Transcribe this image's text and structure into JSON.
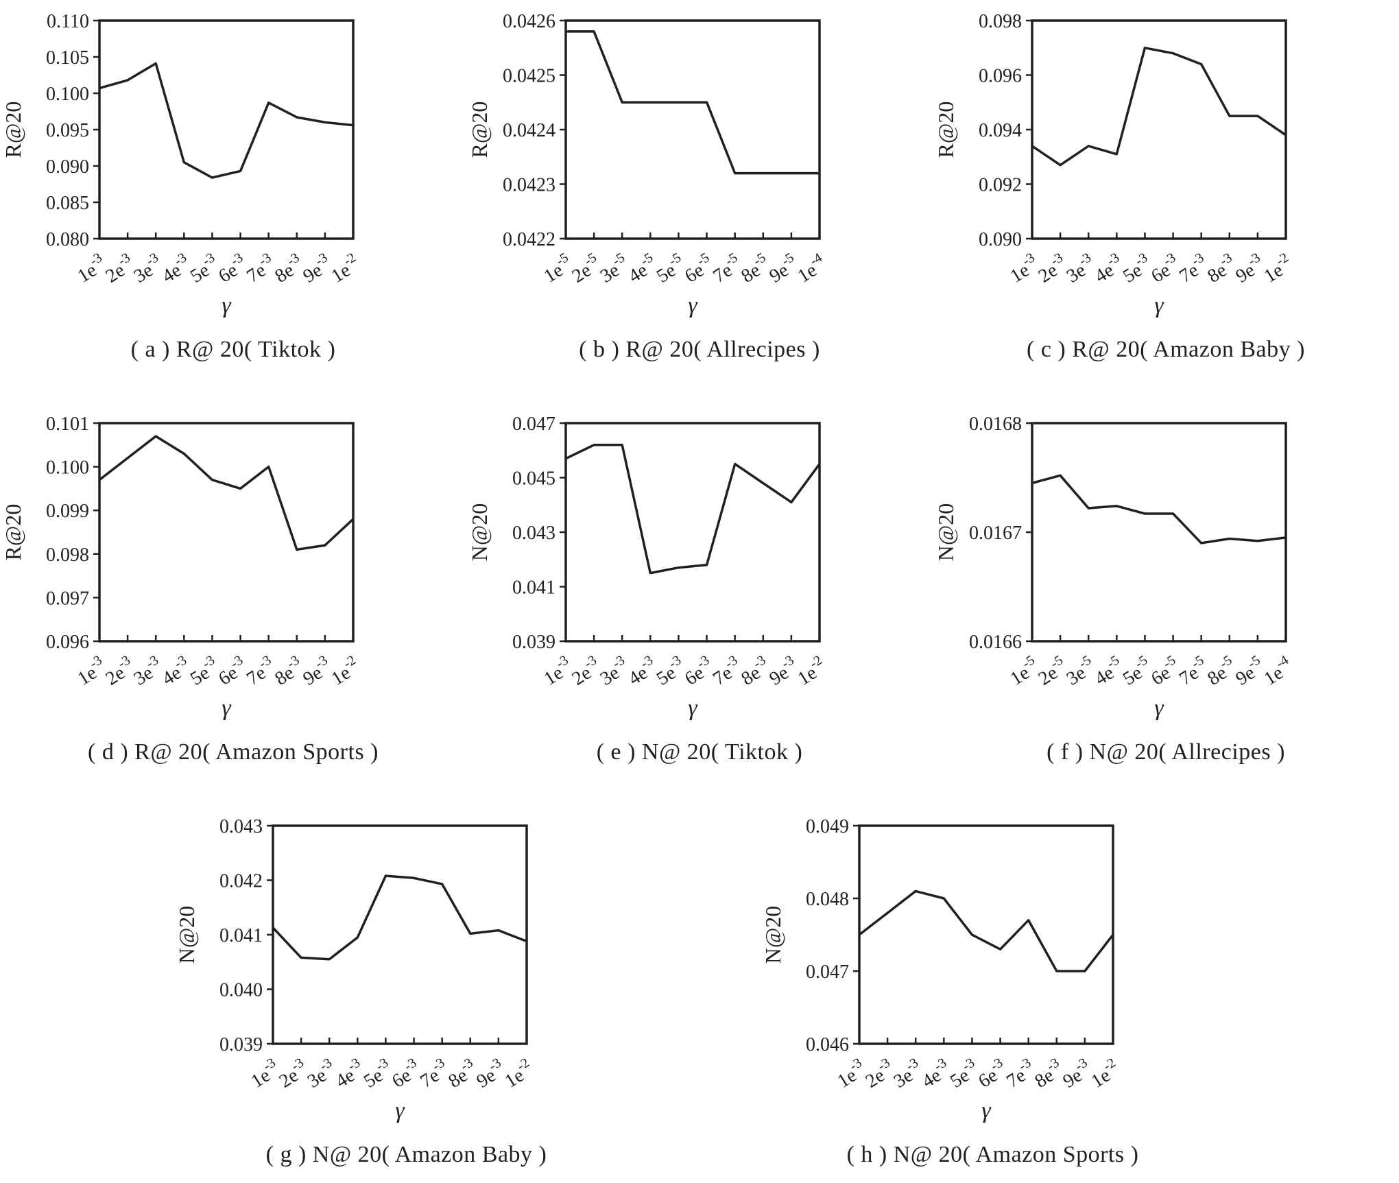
{
  "page": {
    "background": "#ffffff",
    "ink": "#231f20"
  },
  "chart_data": [
    {
      "id": "a",
      "type": "line",
      "caption": "( a ) R@ 20( Tiktok )",
      "ylabel": "R@20",
      "xlabel": "γ",
      "categories": [
        "1e-3",
        "2e-3",
        "3e-3",
        "4e-3",
        "5e-3",
        "6e-3",
        "7e-3",
        "8e-3",
        "9e-3",
        "1e-2"
      ],
      "values": [
        0.1007,
        0.1018,
        0.1041,
        0.0905,
        0.0884,
        0.0893,
        0.0987,
        0.0967,
        0.096,
        0.0956
      ],
      "ylim": [
        0.08,
        0.11
      ],
      "yticks": [
        "0.080",
        "0.085",
        "0.090",
        "0.095",
        "0.100",
        "0.105",
        "0.110"
      ],
      "grid": false,
      "legend": "none",
      "line_color": "#231f20"
    },
    {
      "id": "b",
      "type": "line",
      "caption": "( b ) R@ 20( Allrecipes )",
      "ylabel": "R@20",
      "xlabel": "γ",
      "categories": [
        "1e-5",
        "2e-5",
        "3e-5",
        "4e-5",
        "5e-5",
        "6e-5",
        "7e-5",
        "8e-5",
        "9e-5",
        "1e-4"
      ],
      "values": [
        0.04258,
        0.04258,
        0.04245,
        0.04245,
        0.04245,
        0.04245,
        0.04232,
        0.04232,
        0.04232,
        0.04232
      ],
      "ylim": [
        0.0422,
        0.0426
      ],
      "yticks": [
        "0.0422",
        "0.0423",
        "0.0424",
        "0.0425",
        "0.0426"
      ],
      "grid": false,
      "legend": "none",
      "line_color": "#231f20"
    },
    {
      "id": "c",
      "type": "line",
      "caption": "( c ) R@ 20( Amazon Baby )",
      "ylabel": "R@20",
      "xlabel": "γ",
      "categories": [
        "1e-3",
        "2e-3",
        "3e-3",
        "4e-3",
        "5e-3",
        "6e-3",
        "7e-3",
        "8e-3",
        "9e-3",
        "1e-2"
      ],
      "values": [
        0.0934,
        0.0927,
        0.0934,
        0.0931,
        0.097,
        0.0968,
        0.0964,
        0.0945,
        0.0945,
        0.0938
      ],
      "ylim": [
        0.09,
        0.098
      ],
      "yticks": [
        "0.090",
        "0.092",
        "0.094",
        "0.096",
        "0.098"
      ],
      "grid": false,
      "legend": "none",
      "line_color": "#231f20"
    },
    {
      "id": "d",
      "type": "line",
      "caption": "( d ) R@ 20( Amazon Sports )",
      "ylabel": "R@20",
      "xlabel": "γ",
      "categories": [
        "1e-3",
        "2e-3",
        "3e-3",
        "4e-3",
        "5e-3",
        "6e-3",
        "7e-3",
        "8e-3",
        "9e-3",
        "1e-2"
      ],
      "values": [
        0.0997,
        0.1002,
        0.1007,
        0.1003,
        0.0997,
        0.0995,
        0.1,
        0.0981,
        0.0982,
        0.0988
      ],
      "ylim": [
        0.096,
        0.101
      ],
      "yticks": [
        "0.096",
        "0.097",
        "0.098",
        "0.099",
        "0.100",
        "0.101"
      ],
      "grid": false,
      "legend": "none",
      "line_color": "#231f20"
    },
    {
      "id": "e",
      "type": "line",
      "caption": "( e ) N@ 20( Tiktok )",
      "ylabel": "N@20",
      "xlabel": "γ",
      "categories": [
        "1e-3",
        "2e-3",
        "3e-3",
        "4e-3",
        "5e-3",
        "6e-3",
        "7e-3",
        "8e-3",
        "9e-3",
        "1e-2"
      ],
      "values": [
        0.0457,
        0.0462,
        0.0462,
        0.0415,
        0.0417,
        0.0418,
        0.0455,
        0.0448,
        0.0441,
        0.0455
      ],
      "ylim": [
        0.039,
        0.047
      ],
      "yticks": [
        "0.039",
        "0.041",
        "0.043",
        "0.045",
        "0.047"
      ],
      "grid": false,
      "legend": "none",
      "line_color": "#231f20"
    },
    {
      "id": "f",
      "type": "line",
      "caption": "( f ) N@ 20( Allrecipes )",
      "ylabel": "N@20",
      "xlabel": "γ",
      "categories": [
        "1e-5",
        "2e-5",
        "3e-5",
        "4e-5",
        "5e-5",
        "6e-5",
        "7e-5",
        "8e-5",
        "9e-5",
        "1e-4"
      ],
      "values": [
        0.016745,
        0.016752,
        0.016722,
        0.016724,
        0.016717,
        0.016717,
        0.01669,
        0.016694,
        0.016692,
        0.016695
      ],
      "ylim": [
        0.0166,
        0.0168
      ],
      "yticks": [
        "0.0166",
        "0.0167",
        "0.0168"
      ],
      "grid": false,
      "legend": "none",
      "line_color": "#231f20"
    },
    {
      "id": "g",
      "type": "line",
      "caption": "( g ) N@ 20( Amazon Baby )",
      "ylabel": "N@20",
      "xlabel": "γ",
      "categories": [
        "1e-3",
        "2e-3",
        "3e-3",
        "4e-3",
        "5e-3",
        "6e-3",
        "7e-3",
        "8e-3",
        "9e-3",
        "1e-2"
      ],
      "values": [
        0.04113,
        0.04058,
        0.04055,
        0.04095,
        0.04208,
        0.04204,
        0.04193,
        0.04102,
        0.04108,
        0.04088
      ],
      "ylim": [
        0.039,
        0.043
      ],
      "yticks": [
        "0.039",
        "0.040",
        "0.041",
        "0.042",
        "0.043"
      ],
      "grid": false,
      "legend": "none",
      "line_color": "#231f20"
    },
    {
      "id": "h",
      "type": "line",
      "caption": "( h ) N@ 20( Amazon Sports )",
      "ylabel": "N@20",
      "xlabel": "γ",
      "categories": [
        "1e-3",
        "2e-3",
        "3e-3",
        "4e-3",
        "5e-3",
        "6e-3",
        "7e-3",
        "8e-3",
        "9e-3",
        "1e-2"
      ],
      "values": [
        0.0475,
        0.0478,
        0.0481,
        0.048,
        0.0475,
        0.0473,
        0.0477,
        0.047,
        0.047,
        0.0475
      ],
      "ylim": [
        0.046,
        0.049
      ],
      "yticks": [
        "0.046",
        "0.047",
        "0.048",
        "0.049"
      ],
      "grid": false,
      "legend": "none",
      "line_color": "#231f20"
    }
  ]
}
